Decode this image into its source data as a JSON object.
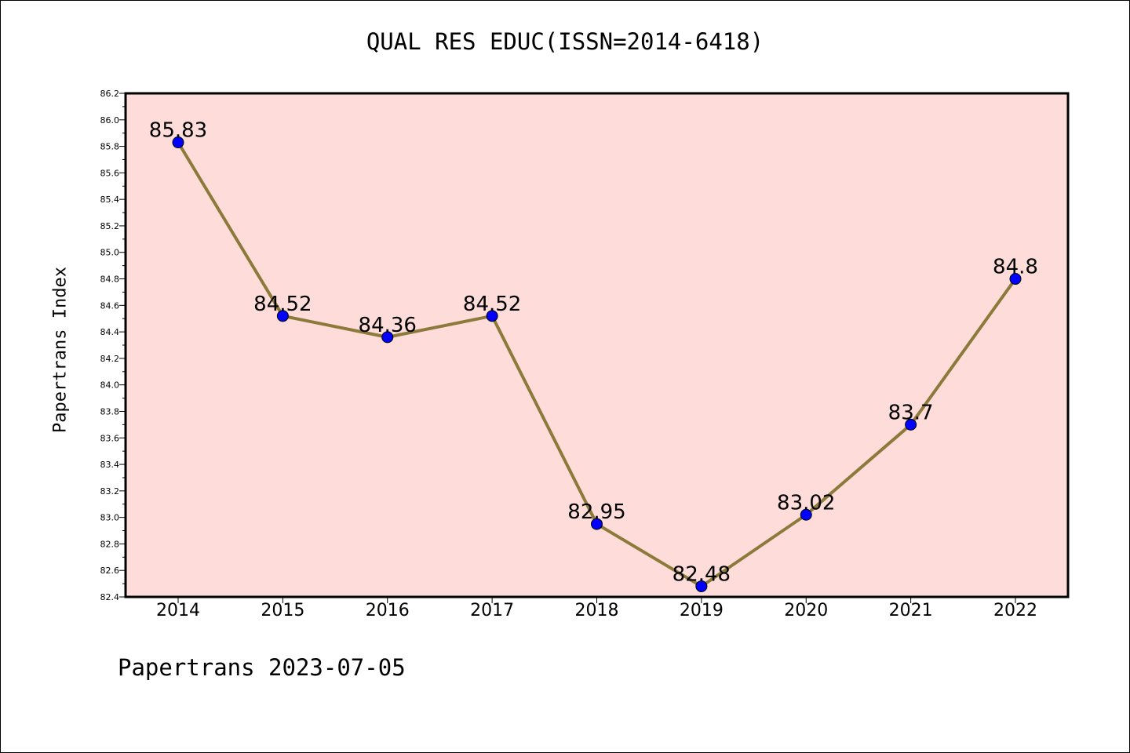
{
  "chart_data": {
    "type": "line",
    "title": "QUAL RES EDUC(ISSN=2014-6418)",
    "ylabel": "Papertrans Index",
    "xlabel": "",
    "footer": "Papertrans 2023-07-05",
    "categories": [
      "2014",
      "2015",
      "2016",
      "2017",
      "2018",
      "2019",
      "2020",
      "2021",
      "2022"
    ],
    "series": [
      {
        "values": [
          85.83,
          84.52,
          84.36,
          84.52,
          82.95,
          82.48,
          83.02,
          83.7,
          84.8
        ],
        "labels": [
          "85.83",
          "84.52",
          "84.36",
          "84.52",
          "82.95",
          "82.48",
          "83.02",
          "83.7",
          "84.8"
        ]
      }
    ],
    "ylim": [
      82.4,
      86.2
    ],
    "yticks": [
      82.4,
      82.6,
      82.8,
      83.0,
      83.2,
      83.4,
      83.6,
      83.8,
      84.0,
      84.2,
      84.4,
      84.6,
      84.8,
      85.0,
      85.2,
      85.4,
      85.6,
      85.8,
      86.0,
      86.2
    ],
    "ytick_labels": [
      "82.4",
      "82.6",
      "82.8",
      "83.0",
      "83.2",
      "83.4",
      "83.6",
      "83.8",
      "84.0",
      "84.2",
      "84.4",
      "84.6",
      "84.8",
      "85.0",
      "85.2",
      "85.4",
      "85.6",
      "85.8",
      "86.0",
      "86.2"
    ],
    "grid": false,
    "colors": {
      "plot_background": "#fddcda",
      "line": "#8c7a3a",
      "marker": "#0000ff",
      "axis": "#000000"
    }
  }
}
